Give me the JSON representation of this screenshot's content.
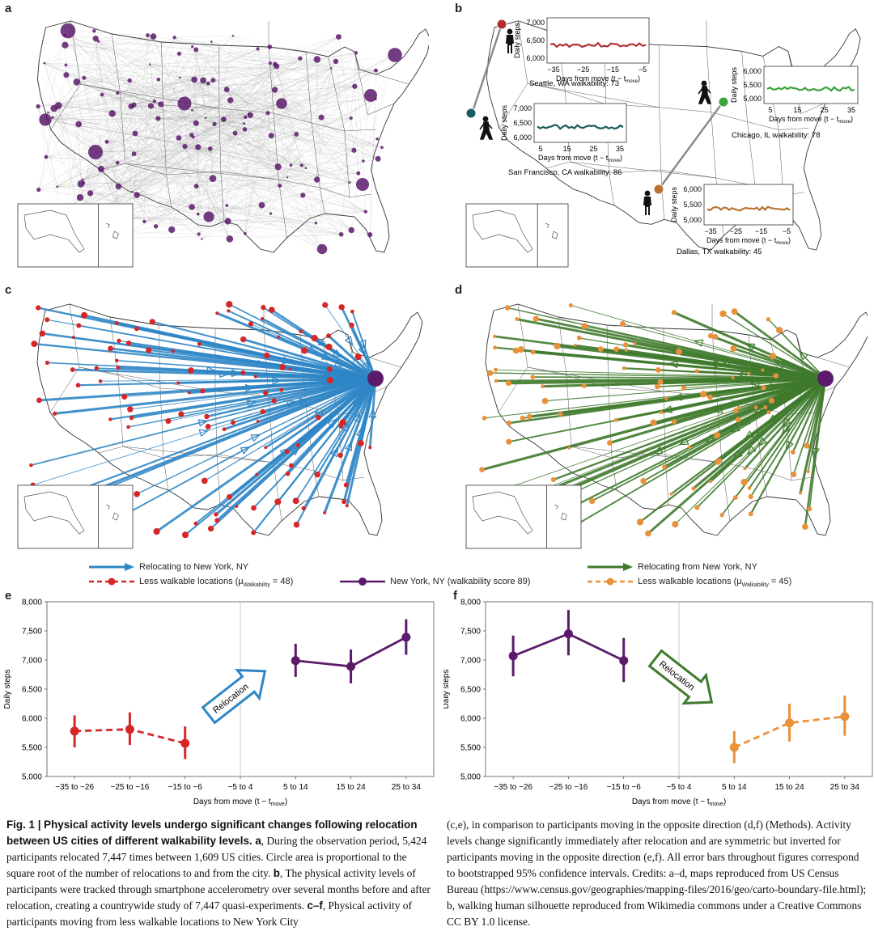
{
  "panels": {
    "a": {
      "label": "a"
    },
    "b": {
      "label": "b",
      "insets": [
        {
          "city": "Seattle, WA walkability: 73",
          "ticks": [
            "7,000",
            "6,500",
            "6,000"
          ],
          "xticks": [
            "−35",
            "−25",
            "−15",
            "−5"
          ],
          "xlabel": "Days from move (t − t",
          "xsub": "move",
          "ylabel": "Daily steps",
          "color": "#b03030"
        },
        {
          "city": "San Francisco, CA walkability: 86",
          "ticks": [
            "7,000",
            "6,500",
            "6,000"
          ],
          "xticks": [
            "5",
            "15",
            "25",
            "35"
          ],
          "xlabel": "Days from move (t − t",
          "xsub": "move",
          "ylabel": "Daily steps",
          "color": "#1a5c5c"
        },
        {
          "city": "Chicago, IL walkability: 78",
          "ticks": [
            "6,000",
            "5,500",
            "5,000"
          ],
          "xticks": [
            "5",
            "15",
            "25",
            "35"
          ],
          "xlabel": "Days from move (t − t",
          "xsub": "move",
          "ylabel": "Daily steps",
          "color": "#3aa33a"
        },
        {
          "city": "Dallas, TX walkability: 45",
          "ticks": [
            "6,000",
            "5,500",
            "5,000"
          ],
          "xticks": [
            "−35",
            "−25",
            "−15",
            "−5"
          ],
          "xlabel": "Days from move (t − t",
          "xsub": "move",
          "ylabel": "Daily steps",
          "color": "#b87333"
        }
      ]
    },
    "c": {
      "label": "c"
    },
    "d": {
      "label": "d"
    }
  },
  "legend_left": {
    "arrow": "Relocating to New York, NY",
    "dots": "Less walkable locations (μ",
    "dots_sub": "Walkability",
    "dots_tail": " = 48)",
    "arrow_color": "#2f86c5",
    "dot_color": "#d62728"
  },
  "legend_mid": {
    "text": "New York, NY (walkability score 89)",
    "color": "#5c1a6b"
  },
  "legend_right": {
    "arrow": "Relocating from New York, NY",
    "dots": "Less walkable locations (μ",
    "dots_sub": "Walkability",
    "dots_tail": " = 45)",
    "arrow_color": "#3f7a2c",
    "dot_color": "#e8913a"
  },
  "chart_data": [
    {
      "panel": "e",
      "type": "line",
      "categories": [
        "−35 to −26",
        "−25 to −16",
        "−15 to −6",
        "−5 to 4",
        "5 to 14",
        "15 to 24",
        "25 to 34"
      ],
      "ylabel": "Daily steps",
      "xlabel": "Days from move (t − t",
      "xlabel_sub": "move",
      "ylim": [
        5000,
        8000
      ],
      "yticks": [
        "5,000",
        "5,500",
        "6,000",
        "6,500",
        "7,000",
        "7,500",
        "8,000"
      ],
      "arrow_text": "Relocation",
      "series": [
        {
          "color": "#d62728",
          "dashed": true,
          "points": [
            {
              "x": 0,
              "y": 5780,
              "lo": 5500,
              "hi": 6050
            },
            {
              "x": 1,
              "y": 5810,
              "lo": 5540,
              "hi": 6100
            },
            {
              "x": 2,
              "y": 5570,
              "lo": 5300,
              "hi": 5860
            }
          ]
        },
        {
          "color": "#5c1a6b",
          "dashed": false,
          "points": [
            {
              "x": 4,
              "y": 6990,
              "lo": 6710,
              "hi": 7280
            },
            {
              "x": 5,
              "y": 6890,
              "lo": 6600,
              "hi": 7180
            },
            {
              "x": 6,
              "y": 7390,
              "lo": 7090,
              "hi": 7700
            }
          ]
        }
      ]
    },
    {
      "panel": "f",
      "type": "line",
      "categories": [
        "−35 to −26",
        "−25 to −16",
        "−15 to −6",
        "−5 to 4",
        "5 to 14",
        "15 to 24",
        "25 to 34"
      ],
      "ylabel": "Daily steps",
      "xlabel": "Days from move (t − t",
      "xlabel_sub": "move",
      "ylim": [
        5000,
        8000
      ],
      "yticks": [
        "5,000",
        "5,500",
        "6,000",
        "6,500",
        "7,000",
        "7,500",
        "8,000"
      ],
      "arrow_text": "Relocation",
      "series": [
        {
          "color": "#5c1a6b",
          "dashed": false,
          "points": [
            {
              "x": 0,
              "y": 7070,
              "lo": 6720,
              "hi": 7420
            },
            {
              "x": 1,
              "y": 7450,
              "lo": 7080,
              "hi": 7860
            },
            {
              "x": 2,
              "y": 6990,
              "lo": 6620,
              "hi": 7380
            }
          ]
        },
        {
          "color": "#e8913a",
          "dashed": true,
          "points": [
            {
              "x": 4,
              "y": 5500,
              "lo": 5230,
              "hi": 5780
            },
            {
              "x": 5,
              "y": 5920,
              "lo": 5600,
              "hi": 6250
            },
            {
              "x": 6,
              "y": 6030,
              "lo": 5700,
              "hi": 6390
            }
          ]
        }
      ]
    }
  ],
  "caption": {
    "fig": "Fig. 1 | ",
    "title": "Physical activity levels undergo significant changes following relocation between US cities of different walkability levels. a",
    "left_body": ", During the observation period, 5,424 participants relocated 7,447 times between 1,609 US cities. Circle area is proportional to the square root of the number of relocations to and from the city. ",
    "b_label": "b",
    "left_body2": ", The physical activity levels of participants were tracked through smartphone accelerometry over several months before and after relocation, creating a countrywide study of 7,447 quasi-experiments. ",
    "cf_label": "c–f",
    "left_body3": ", Physical activity of participants moving from less walkable locations to New York City",
    "right_body": "(c,e), in comparison to participants moving in the opposite direction (d,f) (Methods). Activity levels change significantly immediately after relocation and are symmetric but inverted for participants moving in the opposite direction (e,f). All error bars throughout figures correspond to bootstrapped 95% confidence intervals. Credits: a–d, maps reproduced from US Census Bureau (https://www.census.gov/geographies/mapping-files/2016/geo/carto-boundary-file.html); b, walking human silhouette reproduced from Wikimedia commons under a Creative Commons CC BY 1.0 license."
  }
}
